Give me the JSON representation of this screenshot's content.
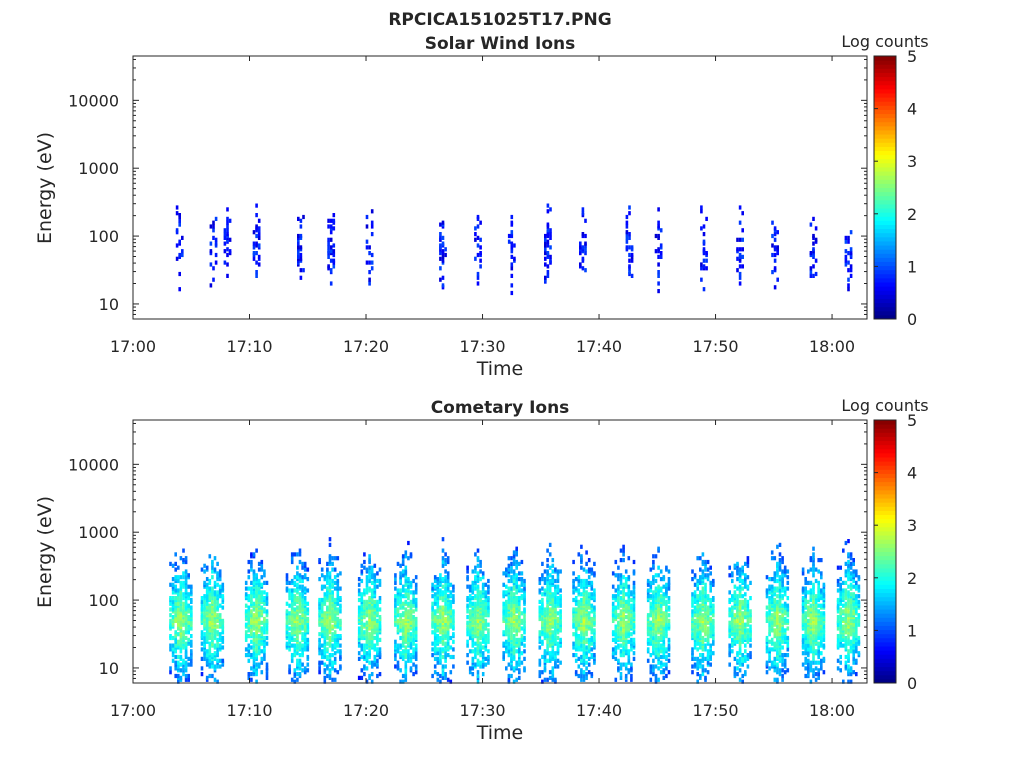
{
  "figure": {
    "title": "RPCICA151025T17.PNG"
  },
  "chart_data": [
    {
      "type": "heatmap",
      "title": "Solar Wind Ions",
      "xlabel": "Time",
      "ylabel": "Energy (eV)",
      "x_ticks": [
        "17:00",
        "17:10",
        "17:20",
        "17:30",
        "17:40",
        "17:50",
        "18:00"
      ],
      "x_range": [
        "17:00",
        "18:03"
      ],
      "y_ticks": [
        "10",
        "100",
        "1000",
        "10000"
      ],
      "y_scale": "log",
      "y_range": [
        6,
        45000
      ],
      "colorbar": {
        "label": "Log counts",
        "ticks": [
          "0",
          "1",
          "2",
          "3",
          "4",
          "5"
        ],
        "range": [
          0,
          5
        ],
        "colormap": "jet"
      },
      "ion_bursts_x": [
        "17:03.9",
        "17:06.8",
        "17:08.0",
        "17:10.5",
        "17:14.3",
        "17:16.9",
        "17:20.2",
        "17:26.5",
        "17:29.5",
        "17:32.4",
        "17:35.5",
        "17:38.5",
        "17:42.5",
        "17:45.0",
        "17:48.9",
        "17:52.0",
        "17:55.0",
        "17:58.3",
        "18:01.3"
      ]
    },
    {
      "type": "heatmap",
      "title": "Cometary Ions",
      "xlabel": "Time",
      "ylabel": "Energy (eV)",
      "x_ticks": [
        "17:00",
        "17:10",
        "17:20",
        "17:30",
        "17:40",
        "17:50",
        "18:00"
      ],
      "x_range": [
        "17:00",
        "18:03"
      ],
      "y_ticks": [
        "10",
        "100",
        "1000",
        "10000"
      ],
      "y_scale": "log",
      "y_range": [
        6,
        45000
      ],
      "colorbar": {
        "label": "Log counts",
        "ticks": [
          "0",
          "1",
          "2",
          "3",
          "4",
          "5"
        ],
        "range": [
          0,
          5
        ],
        "colormap": "jet"
      },
      "ion_bursts_x": [
        "17:04.0",
        "17:06.7",
        "17:10.5",
        "17:14.0",
        "17:16.8",
        "17:20.2",
        "17:23.3",
        "17:26.5",
        "17:29.5",
        "17:32.6",
        "17:35.7",
        "17:38.6",
        "17:42.0",
        "17:45.0",
        "17:48.8",
        "17:52.0",
        "17:55.2",
        "17:58.3",
        "18:01.3"
      ]
    }
  ]
}
